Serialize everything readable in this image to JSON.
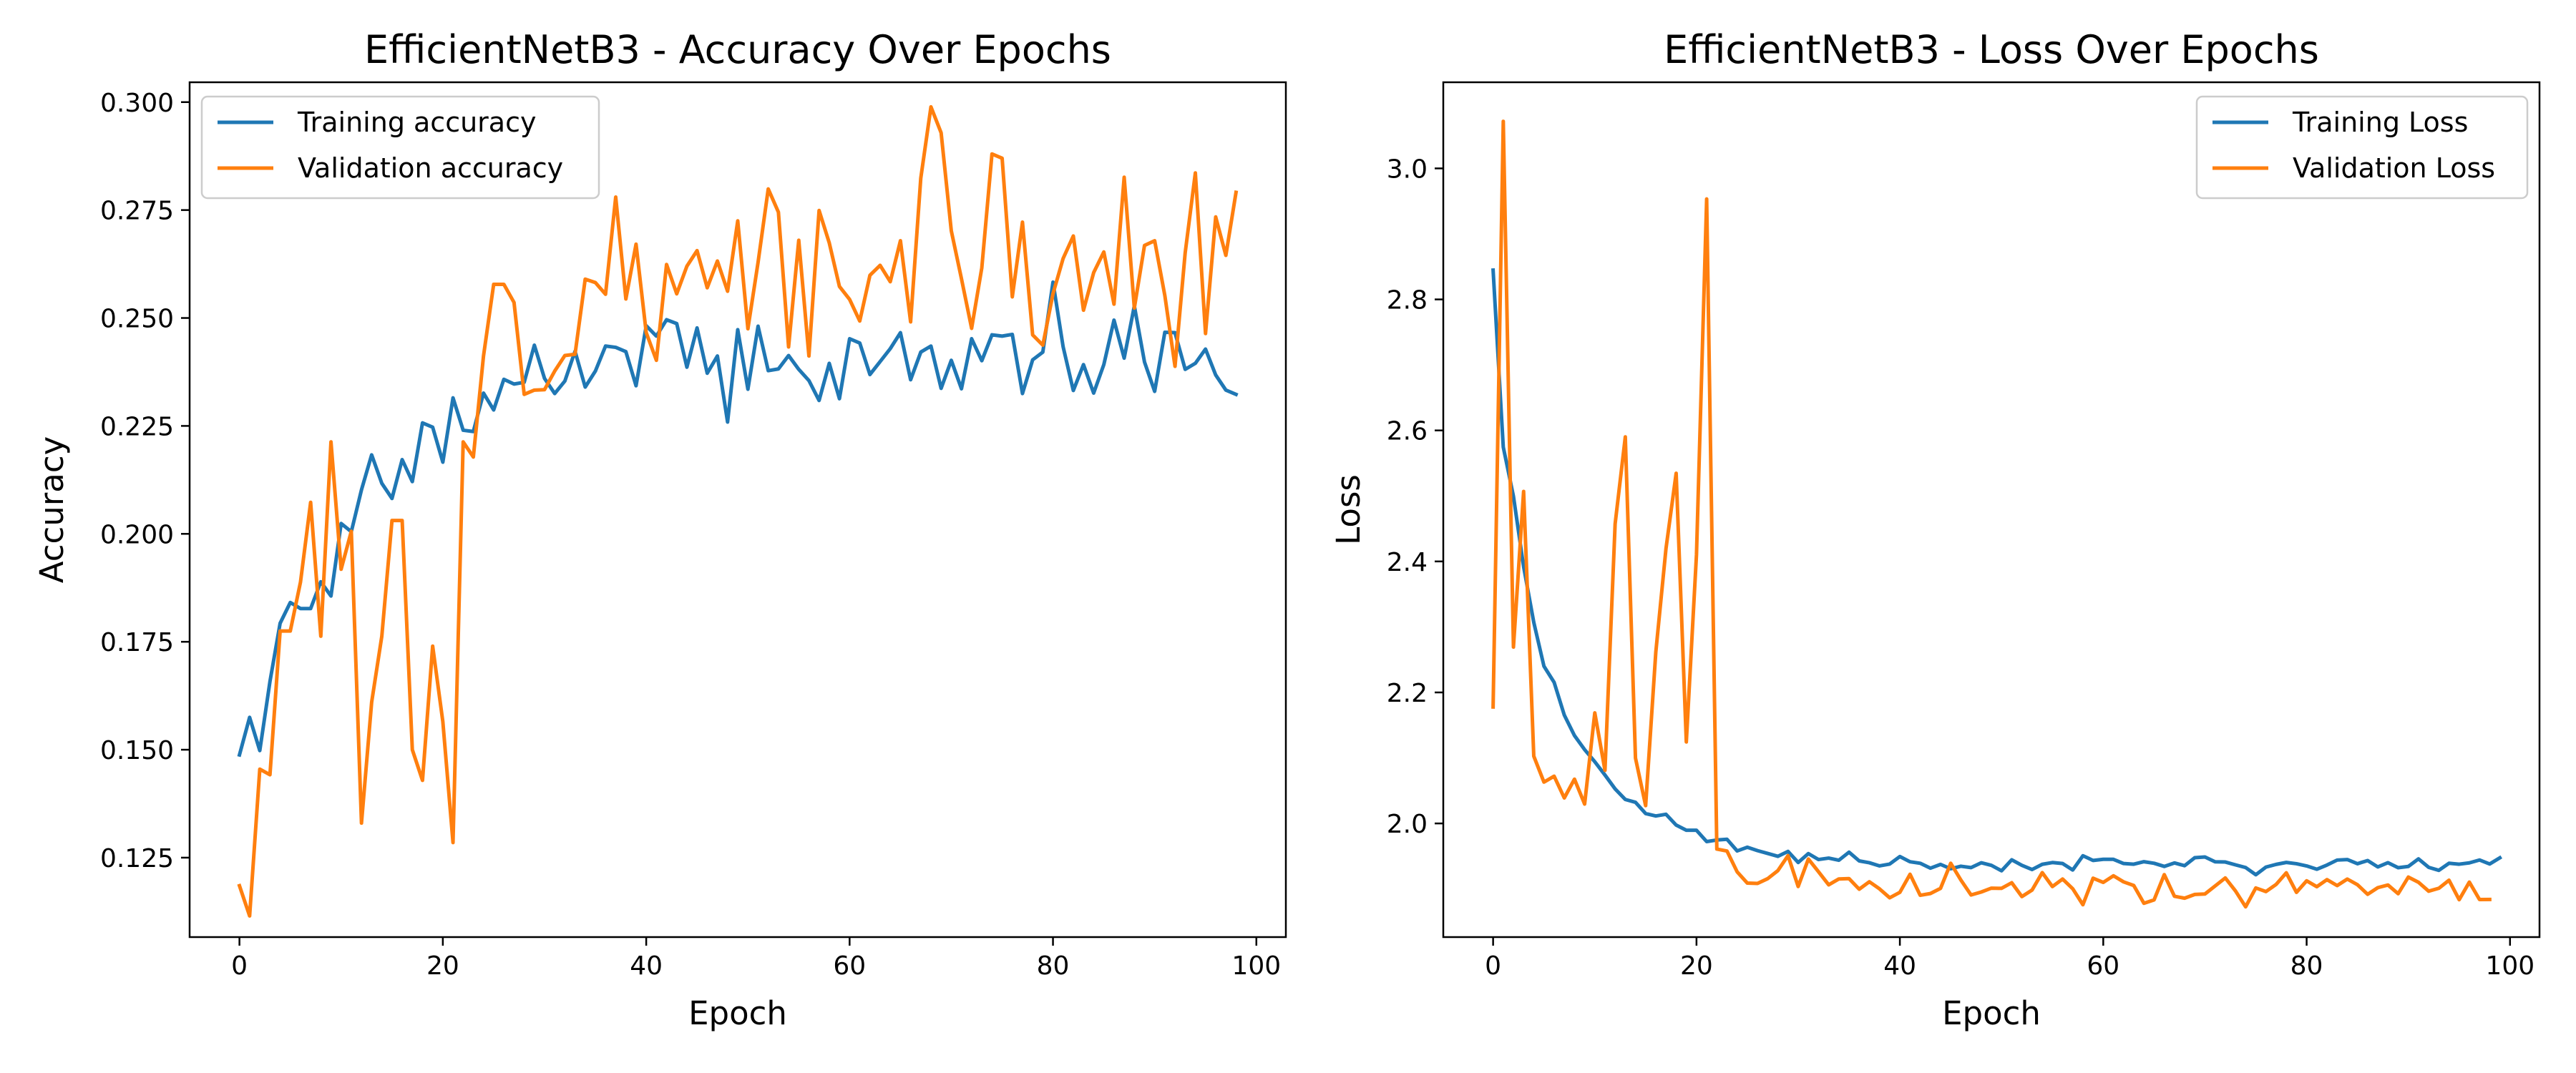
{
  "colors": {
    "training": "#1f77b4",
    "validation": "#ff7f0e",
    "axes": "#000000",
    "legend_border": "#cccccc"
  },
  "chart_data": [
    {
      "type": "line",
      "title": "EfficientNetB3 - Accuracy Over Epochs",
      "xlabel": "Epoch",
      "ylabel": "Accuracy",
      "xlim": [
        -4.9,
        102.9
      ],
      "ylim": [
        0.1066,
        0.3046
      ],
      "xticks": [
        0,
        20,
        40,
        60,
        80,
        100
      ],
      "xtick_labels": [
        "0",
        "20",
        "40",
        "60",
        "80",
        "100"
      ],
      "yticks": [
        0.125,
        0.15,
        0.175,
        0.2,
        0.225,
        0.25,
        0.275,
        0.3
      ],
      "ytick_labels": [
        "0.125",
        "0.150",
        "0.175",
        "0.200",
        "0.225",
        "0.250",
        "0.275",
        "0.300"
      ],
      "grid": false,
      "legend_position": "top-left",
      "series": [
        {
          "name": "Training accuracy",
          "color": "#1f77b4",
          "values": [
            0.1488,
            0.1575,
            0.1498,
            0.1658,
            0.1793,
            0.1841,
            0.1827,
            0.1827,
            0.1889,
            0.1856,
            0.2024,
            0.2005,
            0.2102,
            0.2183,
            0.2117,
            0.2082,
            0.2172,
            0.2121,
            0.2257,
            0.2247,
            0.2166,
            0.2315,
            0.224,
            0.2237,
            0.2326,
            0.2287,
            0.2358,
            0.2347,
            0.2351,
            0.2437,
            0.236,
            0.2325,
            0.2354,
            0.2423,
            0.234,
            0.2377,
            0.2435,
            0.2432,
            0.2422,
            0.2343,
            0.2482,
            0.2458,
            0.2496,
            0.2487,
            0.2386,
            0.2477,
            0.2372,
            0.2412,
            0.2259,
            0.2473,
            0.2335,
            0.2481,
            0.2378,
            0.2382,
            0.2413,
            0.2381,
            0.2355,
            0.2309,
            0.2395,
            0.2313,
            0.2452,
            0.2442,
            0.2369,
            0.2399,
            0.2429,
            0.2466,
            0.2357,
            0.2421,
            0.2435,
            0.2337,
            0.2402,
            0.2336,
            0.2452,
            0.2401,
            0.2461,
            0.2458,
            0.2462,
            0.2325,
            0.2403,
            0.2421,
            0.2583,
            0.2433,
            0.2332,
            0.2392,
            0.2326,
            0.2392,
            0.2495,
            0.2407,
            0.2528,
            0.2398,
            0.233,
            0.2467,
            0.2466,
            0.2381,
            0.2395,
            0.2428,
            0.2368,
            0.2333,
            0.2323
          ]
        },
        {
          "name": "Validation accuracy",
          "color": "#ff7f0e",
          "values": [
            0.1185,
            0.1115,
            0.1455,
            0.1442,
            0.1775,
            0.1775,
            0.1888,
            0.2073,
            0.1763,
            0.2213,
            0.1918,
            0.2006,
            0.133,
            0.161,
            0.1763,
            0.2031,
            0.2031,
            0.15,
            0.1429,
            0.174,
            0.1565,
            0.1285,
            0.2213,
            0.2178,
            0.2412,
            0.2578,
            0.2578,
            0.2536,
            0.2323,
            0.2333,
            0.2334,
            0.2377,
            0.2413,
            0.2416,
            0.259,
            0.2582,
            0.2555,
            0.278,
            0.2544,
            0.2671,
            0.2466,
            0.2402,
            0.2624,
            0.2556,
            0.262,
            0.2656,
            0.257,
            0.2632,
            0.2562,
            0.2725,
            0.2475,
            0.2629,
            0.2799,
            0.2745,
            0.2433,
            0.268,
            0.2412,
            0.2749,
            0.2674,
            0.2573,
            0.2543,
            0.2493,
            0.2599,
            0.2622,
            0.2584,
            0.2679,
            0.2491,
            0.2824,
            0.2989,
            0.2929,
            0.2702,
            0.2591,
            0.2476,
            0.2616,
            0.288,
            0.287,
            0.2549,
            0.2722,
            0.2461,
            0.2437,
            0.2556,
            0.2638,
            0.269,
            0.2518,
            0.2605,
            0.2653,
            0.2532,
            0.2826,
            0.2523,
            0.2668,
            0.2679,
            0.2552,
            0.2388,
            0.2651,
            0.2836,
            0.2464,
            0.2734,
            0.2645,
            0.2791
          ]
        }
      ]
    },
    {
      "type": "line",
      "title": "EfficientNetB3 - Loss Over Epochs",
      "xlabel": "Epoch",
      "ylabel": "Loss",
      "xlim": [
        -4.9,
        102.9
      ],
      "ylim": [
        1.8265,
        3.1315
      ],
      "xticks": [
        0,
        20,
        40,
        60,
        80,
        100
      ],
      "xtick_labels": [
        "0",
        "20",
        "40",
        "60",
        "80",
        "100"
      ],
      "yticks": [
        2.0,
        2.2,
        2.4,
        2.6,
        2.8,
        3.0
      ],
      "ytick_labels": [
        "2.0",
        "2.2",
        "2.4",
        "2.6",
        "2.8",
        "3.0"
      ],
      "grid": false,
      "legend_position": "top-right",
      "series": [
        {
          "name": "Training Loss",
          "color": "#1f77b4",
          "values": [
            2.8447,
            2.5745,
            2.4995,
            2.392,
            2.307,
            2.24,
            2.2154,
            2.1654,
            2.1342,
            2.1127,
            2.0942,
            2.0739,
            2.0527,
            2.0366,
            2.0323,
            2.0151,
            2.0114,
            2.014,
            1.9975,
            1.9896,
            1.9896,
            1.9723,
            1.9747,
            1.9758,
            1.958,
            1.9637,
            1.9585,
            1.9542,
            1.9498,
            1.9573,
            1.9404,
            1.954,
            1.9449,
            1.9471,
            1.9438,
            1.9561,
            1.9428,
            1.94,
            1.9352,
            1.938,
            1.9495,
            1.9415,
            1.9392,
            1.9317,
            1.9375,
            1.9308,
            1.9347,
            1.9326,
            1.94,
            1.936,
            1.9277,
            1.9445,
            1.936,
            1.9296,
            1.9376,
            1.9403,
            1.9388,
            1.9289,
            1.9507,
            1.9435,
            1.9453,
            1.9452,
            1.9388,
            1.9378,
            1.9416,
            1.9392,
            1.9344,
            1.9397,
            1.9355,
            1.9477,
            1.9488,
            1.9414,
            1.9411,
            1.9368,
            1.9327,
            1.9217,
            1.9334,
            1.9375,
            1.9405,
            1.9385,
            1.9351,
            1.9301,
            1.9365,
            1.9441,
            1.9449,
            1.9385,
            1.9434,
            1.9336,
            1.9401,
            1.9324,
            1.9343,
            1.9459,
            1.933,
            1.9284,
            1.9392,
            1.9378,
            1.9398,
            1.9442,
            1.9381,
            1.9475
          ]
        },
        {
          "name": "Validation Loss",
          "color": "#ff7f0e",
          "values": [
            2.1778,
            3.0719,
            2.2692,
            2.5068,
            2.1027,
            2.0631,
            2.0721,
            2.0389,
            2.0676,
            2.0295,
            2.1688,
            2.0811,
            2.4574,
            2.5901,
            2.0998,
            2.0272,
            2.2616,
            2.4195,
            2.5346,
            2.1244,
            2.4106,
            2.9533,
            1.9609,
            1.9579,
            1.9261,
            1.9089,
            1.9084,
            1.9157,
            1.9279,
            1.9509,
            1.9037,
            1.9457,
            1.9262,
            1.9063,
            1.9153,
            1.9158,
            1.8996,
            1.911,
            1.9001,
            1.8865,
            1.8948,
            1.9224,
            1.8903,
            1.893,
            1.9009,
            1.9392,
            1.9136,
            1.8908,
            1.8953,
            1.9012,
            1.9009,
            1.9095,
            1.8883,
            1.8983,
            1.9249,
            1.9036,
            1.9151,
            1.9003,
            1.8759,
            1.9164,
            1.91,
            1.9201,
            1.9108,
            1.9053,
            1.8781,
            1.8833,
            1.9218,
            1.8888,
            1.8859,
            1.8916,
            1.8923,
            1.9045,
            1.9168,
            1.897,
            1.8727,
            1.9015,
            1.896,
            1.9069,
            1.9246,
            1.8948,
            1.9124,
            1.9034,
            1.9142,
            1.9051,
            1.9151,
            1.9064,
            1.8918,
            1.902,
            1.906,
            1.8927,
            1.9181,
            1.9102,
            1.8966,
            1.901,
            1.9133,
            1.8836,
            1.9104,
            1.8838,
            1.884
          ]
        }
      ]
    }
  ]
}
